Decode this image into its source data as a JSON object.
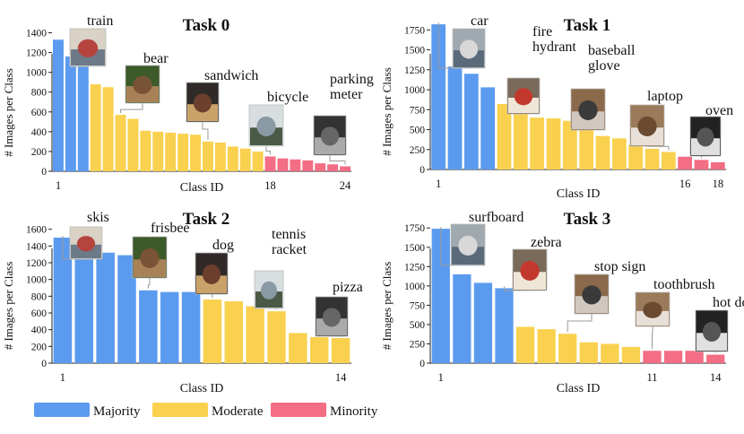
{
  "legend": {
    "majority": "Majority",
    "moderate": "Moderate",
    "minority": "Minority"
  },
  "colors": {
    "majority": "#5b9bef",
    "moderate": "#f9d14f",
    "minority": "#f36d84"
  },
  "chart_data": [
    {
      "type": "bar",
      "title": "Task 0",
      "xlabel": "Class ID",
      "ylabel": "# Images per Class",
      "ylim": [
        0,
        1550
      ],
      "yticks": [
        0,
        200,
        400,
        600,
        800,
        1000,
        1200,
        1400
      ],
      "x_tick_labels": [
        {
          "index": 1,
          "label": "1"
        },
        {
          "index": 18,
          "label": "18"
        },
        {
          "index": 24,
          "label": "24"
        }
      ],
      "values": [
        1330,
        1160,
        1100,
        880,
        850,
        570,
        530,
        410,
        400,
        390,
        380,
        370,
        300,
        290,
        250,
        230,
        200,
        150,
        130,
        120,
        110,
        80,
        70,
        50
      ],
      "groups": [
        "majority",
        "majority",
        "majority",
        "moderate",
        "moderate",
        "moderate",
        "moderate",
        "moderate",
        "moderate",
        "moderate",
        "moderate",
        "moderate",
        "moderate",
        "moderate",
        "moderate",
        "moderate",
        "moderate",
        "minority",
        "minority",
        "minority",
        "minority",
        "minority",
        "minority",
        "minority"
      ],
      "annotations": [
        {
          "label": "train",
          "bar": 2,
          "icon": "train-photo"
        },
        {
          "label": "bear",
          "bar": 6,
          "icon": "bear-photo"
        },
        {
          "label": "sandwich",
          "bar": 13,
          "icon": "sandwich-photo"
        },
        {
          "label": "bicycle",
          "bar": 18,
          "icon": "bicycle-photo"
        },
        {
          "label": "parking\nmeter",
          "bar": 24,
          "icon": "parking-meter-photo"
        }
      ]
    },
    {
      "type": "bar",
      "title": "Task 1",
      "xlabel": "Class ID",
      "ylabel": "# Images per Class",
      "ylim": [
        0,
        1900
      ],
      "yticks": [
        0,
        250,
        500,
        750,
        1000,
        1250,
        1500,
        1750
      ],
      "x_tick_labels": [
        {
          "index": 1,
          "label": "1"
        },
        {
          "index": 16,
          "label": "16"
        },
        {
          "index": 18,
          "label": "18"
        }
      ],
      "values": [
        1820,
        1290,
        1200,
        1030,
        820,
        790,
        650,
        640,
        610,
        560,
        420,
        390,
        310,
        260,
        220,
        160,
        120,
        90
      ],
      "groups": [
        "majority",
        "majority",
        "majority",
        "majority",
        "moderate",
        "moderate",
        "moderate",
        "moderate",
        "moderate",
        "moderate",
        "moderate",
        "moderate",
        "moderate",
        "moderate",
        "moderate",
        "minority",
        "minority",
        "minority"
      ],
      "annotations": [
        {
          "label": "car",
          "bar": 1,
          "icon": "car-photo"
        },
        {
          "label": "fire\nhydrant",
          "bar": 6,
          "icon": "fire-hydrant-photo"
        },
        {
          "label": "baseball\nglove",
          "bar": 10,
          "icon": "baseball-glove-photo"
        },
        {
          "label": "laptop",
          "bar": 15,
          "icon": "laptop-photo"
        },
        {
          "label": "oven",
          "bar": 17,
          "icon": "oven-photo"
        }
      ]
    },
    {
      "type": "bar",
      "title": "Task 2",
      "xlabel": "Class ID",
      "ylabel": "# Images per Class",
      "ylim": [
        0,
        1800
      ],
      "yticks": [
        0,
        200,
        400,
        600,
        800,
        1000,
        1200,
        1400,
        1600
      ],
      "x_tick_labels": [
        {
          "index": 1,
          "label": "1"
        },
        {
          "index": 14,
          "label": "14"
        }
      ],
      "values": [
        1500,
        1350,
        1320,
        1290,
        870,
        850,
        850,
        760,
        740,
        680,
        620,
        360,
        310,
        300
      ],
      "groups": [
        "majority",
        "majority",
        "majority",
        "majority",
        "majority",
        "majority",
        "majority",
        "moderate",
        "moderate",
        "moderate",
        "moderate",
        "moderate",
        "moderate",
        "moderate"
      ],
      "annotations": [
        {
          "label": "skis",
          "bar": 1,
          "icon": "skis-photo"
        },
        {
          "label": "frisbee",
          "bar": 5,
          "icon": "frisbee-photo"
        },
        {
          "label": "dog",
          "bar": 8,
          "icon": "dog-photo"
        },
        {
          "label": "tennis\nracket",
          "bar": 11,
          "icon": "tennis-racket-photo"
        },
        {
          "label": "pizza",
          "bar": 14,
          "icon": "pizza-photo"
        }
      ]
    },
    {
      "type": "bar",
      "title": "Task 3",
      "xlabel": "Class ID",
      "ylabel": "# Images per Class",
      "ylim": [
        0,
        1950
      ],
      "yticks": [
        0,
        250,
        500,
        750,
        1000,
        1250,
        1500,
        1750
      ],
      "x_tick_labels": [
        {
          "index": 1,
          "label": "1"
        },
        {
          "index": 11,
          "label": "11"
        },
        {
          "index": 14,
          "label": "14"
        }
      ],
      "values": [
        1740,
        1150,
        1040,
        970,
        470,
        440,
        380,
        270,
        250,
        210,
        160,
        160,
        160,
        110
      ],
      "groups": [
        "majority",
        "majority",
        "majority",
        "majority",
        "moderate",
        "moderate",
        "moderate",
        "moderate",
        "moderate",
        "moderate",
        "minority",
        "minority",
        "minority",
        "minority"
      ],
      "annotations": [
        {
          "label": "surfboard",
          "bar": 1,
          "icon": "surfboard-photo"
        },
        {
          "label": "zebra",
          "bar": 4,
          "icon": "zebra-photo"
        },
        {
          "label": "stop sign",
          "bar": 7,
          "icon": "stop-sign-photo"
        },
        {
          "label": "toothbrush",
          "bar": 11,
          "icon": "toothbrush-photo"
        },
        {
          "label": "hot dog",
          "bar": 14,
          "icon": "hot-dog-photo"
        }
      ]
    }
  ]
}
